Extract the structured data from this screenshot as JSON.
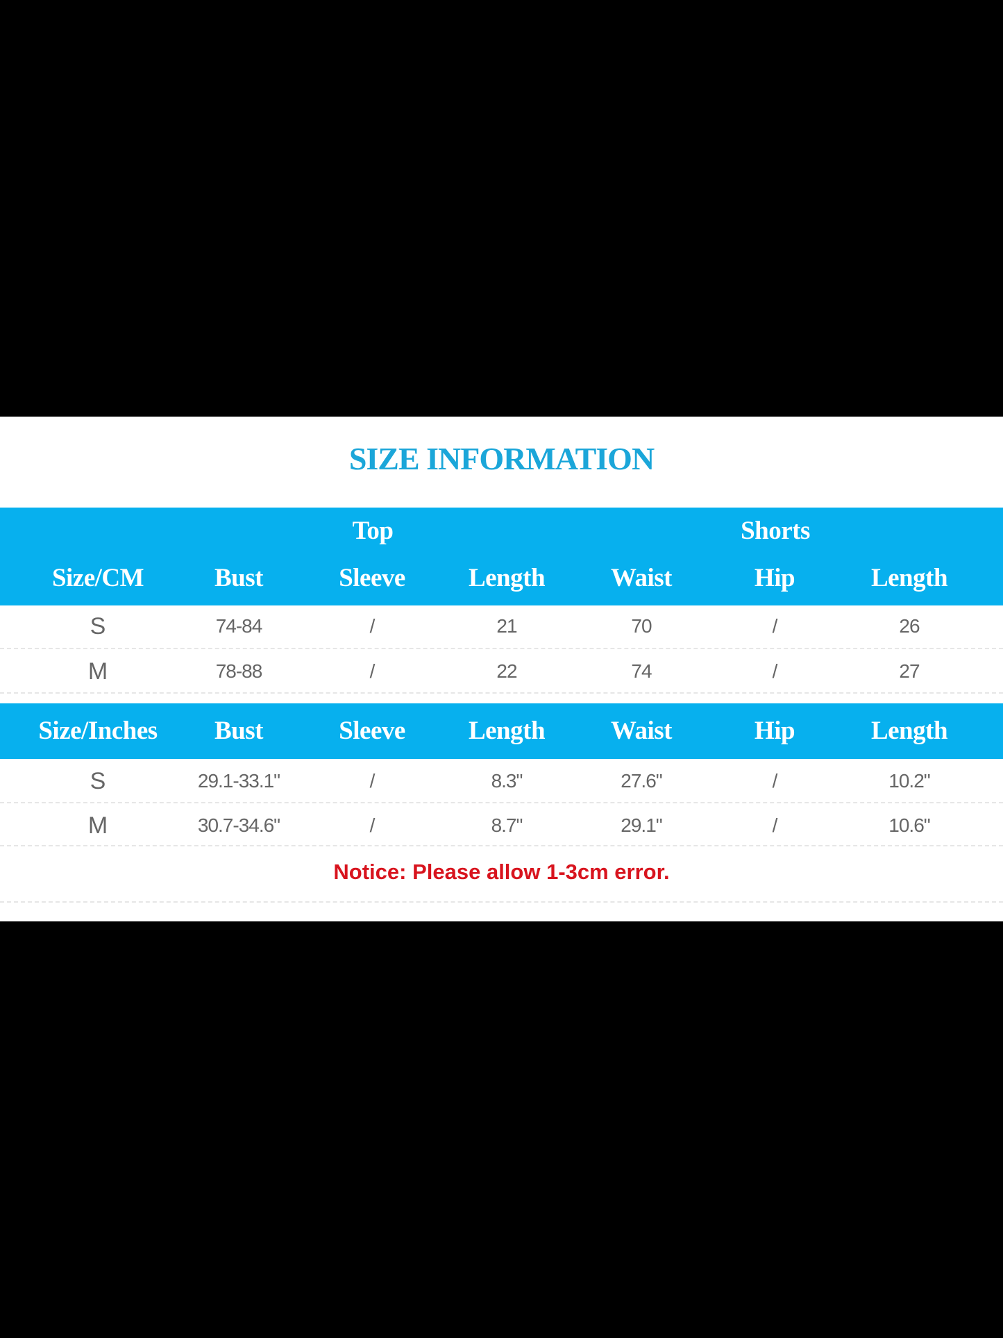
{
  "title": "SIZE INFORMATION",
  "groups": {
    "top": "Top",
    "shorts": "Shorts"
  },
  "cm_table": {
    "headers": [
      "Size/CM",
      "Bust",
      "Sleeve",
      "Length",
      "Waist",
      "Hip",
      "Length"
    ],
    "rows": [
      [
        "S",
        "74-84",
        "/",
        "21",
        "70",
        "/",
        "26"
      ],
      [
        "M",
        "78-88",
        "/",
        "22",
        "74",
        "/",
        "27"
      ]
    ]
  },
  "inch_table": {
    "headers": [
      "Size/Inches",
      "Bust",
      "Sleeve",
      "Length",
      "Waist",
      "Hip",
      "Length"
    ],
    "rows": [
      [
        "S",
        "29.1-33.1\"",
        "/",
        "8.3\"",
        "27.6\"",
        "/",
        "10.2\""
      ],
      [
        "M",
        "30.7-34.6\"",
        "/",
        "8.7\"",
        "29.1\"",
        "/",
        "10.6\""
      ]
    ]
  },
  "notice": "Notice: Please allow 1-3cm error.",
  "colors": {
    "header_band": "#07b0ee",
    "title": "#1ba6d9",
    "notice": "#d8141e"
  }
}
